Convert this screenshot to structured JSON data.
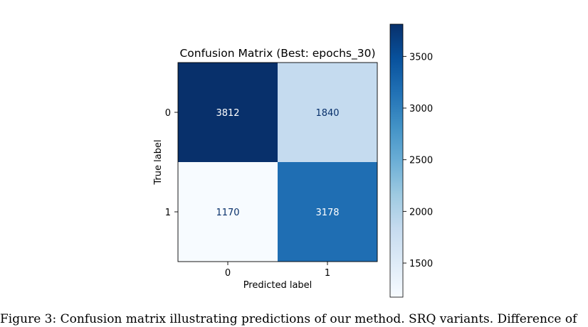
{
  "chart_data": {
    "type": "heatmap",
    "title": "Confusion Matrix (Best: epochs_30)",
    "xlabel": "Predicted label",
    "ylabel": "True label",
    "x_categories": [
      "0",
      "1"
    ],
    "y_categories": [
      "0",
      "1"
    ],
    "values": [
      [
        3812,
        1840
      ],
      [
        1170,
        3178
      ]
    ],
    "colormap": "Blues",
    "colorbar": {
      "range": [
        1170,
        3812
      ],
      "ticks": [
        1500,
        2000,
        2500,
        3000,
        3500
      ],
      "tick_labels": [
        "1500",
        "2000",
        "2500",
        "3000",
        "3500"
      ]
    },
    "colors": {
      "low": "#f7fbff",
      "mid": "#6baed6",
      "high": "#08306b",
      "label_dark": "#08306b",
      "label_light": "#ffffff"
    }
  },
  "caption": "Figure 3: Confusion matrix illustrating predictions of our method. SRQ variants. Difference of"
}
